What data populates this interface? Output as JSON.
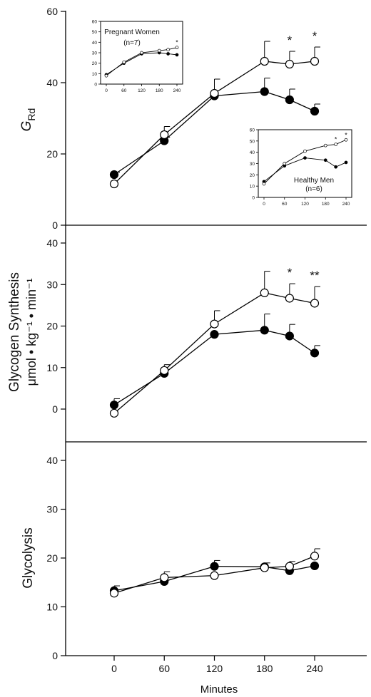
{
  "chart_data": [
    {
      "type": "line",
      "ylabel": "G",
      "ylabel_sub": "Rd",
      "ylim": [
        0,
        60
      ],
      "yticks": [
        0,
        20,
        40,
        60
      ],
      "x": [
        0,
        60,
        120,
        180,
        210,
        240
      ],
      "series": [
        {
          "marker": "filled",
          "values": [
            14.2,
            23.7,
            36.3,
            37.5,
            35.2,
            32.0
          ],
          "err": [
            0.7,
            1.0,
            0,
            3.8,
            3.0,
            2.0
          ]
        },
        {
          "marker": "open",
          "values": [
            11.6,
            25.4,
            37.0,
            46.0,
            45.2,
            46.0
          ],
          "err": [
            0,
            2.3,
            4.0,
            5.6,
            3.6,
            4.0
          ]
        }
      ],
      "significance": [
        {
          "x": 210,
          "label": "*"
        },
        {
          "x": 240,
          "label": "*"
        }
      ],
      "insets": [
        {
          "label_line1": "Pregnant Women",
          "label_line2": "(n=7)",
          "ylim": [
            0,
            60
          ],
          "yticks": [
            "0",
            "10",
            "20",
            "30",
            "40",
            "50",
            "60"
          ],
          "xticks": [
            "0",
            "60",
            "120",
            "180",
            "240"
          ],
          "x": [
            0,
            60,
            120,
            180,
            210,
            240
          ],
          "series": [
            {
              "marker": "filled",
              "values": [
                9,
                20,
                29,
                30,
                29,
                28
              ]
            },
            {
              "marker": "open",
              "values": [
                8,
                21,
                30,
                32,
                33,
                35
              ]
            }
          ],
          "significance": [
            {
              "x": 240,
              "label": "*"
            }
          ]
        },
        {
          "label_line1": "Healthy Men",
          "label_line2": "(n=6)",
          "ylim": [
            0,
            60
          ],
          "yticks": [
            "0",
            "10",
            "20",
            "30",
            "40",
            "50",
            "60"
          ],
          "xticks": [
            "0",
            "60",
            "120",
            "180",
            "240"
          ],
          "x": [
            0,
            60,
            120,
            180,
            210,
            240
          ],
          "series": [
            {
              "marker": "filled",
              "values": [
                14,
                28,
                35,
                33,
                27,
                31
              ]
            },
            {
              "marker": "open",
              "values": [
                12,
                30,
                41,
                46,
                47,
                51
              ]
            }
          ],
          "significance": [
            {
              "x": 210,
              "label": "*"
            },
            {
              "x": 240,
              "label": "*"
            }
          ]
        }
      ]
    },
    {
      "type": "line",
      "ylabel": "Glycogen Synthesis",
      "ylabel2": "μmol • kg⁻¹ • min⁻¹",
      "ylim": [
        -3,
        44
      ],
      "yticks": [
        0,
        10,
        20,
        30,
        40
      ],
      "x": [
        0,
        60,
        120,
        180,
        210,
        240
      ],
      "series": [
        {
          "marker": "filled",
          "values": [
            1.0,
            8.6,
            18.0,
            19.0,
            17.6,
            13.5
          ],
          "err": [
            1.5,
            0,
            0,
            3.9,
            2.8,
            1.8
          ]
        },
        {
          "marker": "open",
          "values": [
            -1.0,
            9.3,
            20.5,
            28.0,
            26.7,
            25.5
          ],
          "err": [
            0,
            1.4,
            3.2,
            5.2,
            3.5,
            4.0
          ]
        }
      ],
      "significance": [
        {
          "x": 210,
          "label": "*"
        },
        {
          "x": 240,
          "label": "**"
        }
      ]
    },
    {
      "type": "line",
      "ylabel": "Glycolysis",
      "xlabel": "Minutes",
      "xticks": [
        "0",
        "60",
        "120",
        "180",
        "240"
      ],
      "ylim": [
        0,
        45
      ],
      "yticks": [
        0,
        10,
        20,
        30,
        40
      ],
      "x": [
        0,
        60,
        120,
        180,
        210,
        240
      ],
      "series": [
        {
          "marker": "filled",
          "values": [
            13.3,
            15.2,
            18.3,
            18.2,
            17.4,
            18.4
          ],
          "err": [
            1.0,
            0,
            1.2,
            0.8,
            0,
            0
          ]
        },
        {
          "marker": "open",
          "values": [
            12.8,
            16.0,
            16.4,
            18.0,
            18.3,
            20.4
          ],
          "err": [
            0,
            1.2,
            0,
            0,
            1.0,
            1.5
          ]
        }
      ],
      "significance": []
    }
  ]
}
